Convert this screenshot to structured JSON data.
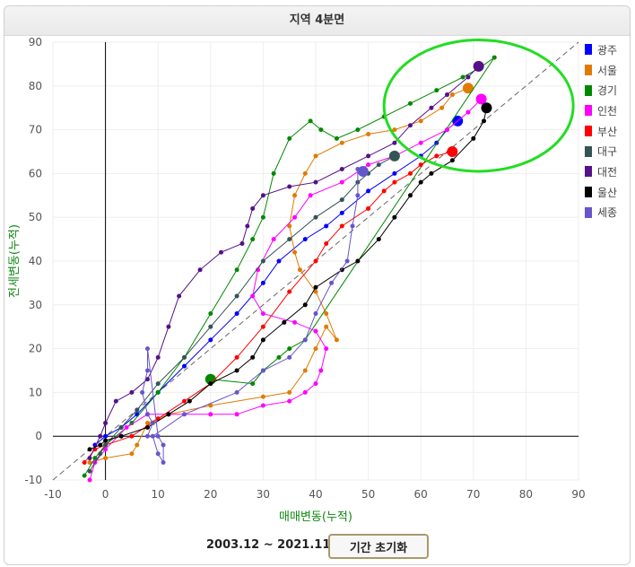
{
  "header": {
    "title": "지역 4분면"
  },
  "footer": {
    "period": "2003.12 ~ 2021.11",
    "reset_label": "기간 초기화"
  },
  "chart_data": {
    "type": "scatter",
    "title": "지역 4분면",
    "xlabel": "매매변동(누적)",
    "ylabel": "전세변동(누적)",
    "xlim": [
      -10,
      90
    ],
    "ylim": [
      -10,
      90
    ],
    "xticks": [
      -10,
      0,
      10,
      20,
      30,
      40,
      50,
      60,
      70,
      80,
      90
    ],
    "yticks": [
      -10,
      0,
      10,
      20,
      30,
      40,
      50,
      60,
      70,
      80,
      90
    ],
    "grid": true,
    "diagonal_reference": true,
    "legend_position": "right",
    "highlight_ellipse": {
      "cx": 71,
      "cy": 75.5,
      "rx": 18,
      "ry": 15,
      "color": "#22dd22"
    },
    "series": [
      {
        "name": "광주",
        "color": "#0000ff",
        "points": [
          [
            -2,
            -2
          ],
          [
            0,
            0
          ],
          [
            3,
            2
          ],
          [
            6,
            5
          ],
          [
            10,
            10
          ],
          [
            15,
            16
          ],
          [
            20,
            22
          ],
          [
            25,
            28
          ],
          [
            30,
            35
          ],
          [
            33,
            40
          ],
          [
            38,
            45
          ],
          [
            42,
            48
          ],
          [
            45,
            51
          ],
          [
            50,
            56
          ],
          [
            55,
            60
          ],
          [
            60,
            64
          ],
          [
            63,
            67
          ],
          [
            65,
            70
          ],
          [
            67,
            72
          ]
        ]
      },
      {
        "name": "서울",
        "color": "#e07b00",
        "points": [
          [
            -3,
            -6
          ],
          [
            0,
            -5
          ],
          [
            5,
            -4
          ],
          [
            6,
            -2
          ],
          [
            8,
            3
          ],
          [
            12,
            5
          ],
          [
            20,
            7
          ],
          [
            30,
            9
          ],
          [
            35,
            10
          ],
          [
            38,
            15
          ],
          [
            40,
            20
          ],
          [
            42,
            25
          ],
          [
            44,
            22
          ],
          [
            42,
            28
          ],
          [
            40,
            33
          ],
          [
            37,
            38
          ],
          [
            36,
            42
          ],
          [
            35,
            48
          ],
          [
            36,
            55
          ],
          [
            38,
            60
          ],
          [
            40,
            64
          ],
          [
            45,
            67
          ],
          [
            50,
            69
          ],
          [
            55,
            70
          ],
          [
            60,
            72
          ],
          [
            64,
            75
          ],
          [
            66,
            78
          ],
          [
            69,
            79.5
          ]
        ]
      },
      {
        "name": "경기",
        "color": "#008800",
        "points": [
          [
            -4,
            -9
          ],
          [
            -2,
            -5
          ],
          [
            0,
            -2
          ],
          [
            5,
            3
          ],
          [
            10,
            10
          ],
          [
            15,
            18
          ],
          [
            20,
            28
          ],
          [
            25,
            38
          ],
          [
            28,
            45
          ],
          [
            30,
            50
          ],
          [
            32,
            60
          ],
          [
            35,
            68
          ],
          [
            39,
            72
          ],
          [
            41,
            70
          ],
          [
            44,
            68
          ],
          [
            48,
            70
          ],
          [
            53,
            73
          ],
          [
            58,
            76
          ],
          [
            63,
            79
          ],
          [
            68,
            82
          ],
          [
            71,
            84
          ],
          [
            74,
            86.5
          ],
          [
            38,
            22
          ],
          [
            35,
            20
          ],
          [
            33,
            18
          ],
          [
            30,
            15
          ],
          [
            28,
            12
          ],
          [
            20,
            13
          ]
        ]
      },
      {
        "name": "인천",
        "color": "#ff00ff",
        "points": [
          [
            -3,
            -10
          ],
          [
            -2,
            -6
          ],
          [
            0,
            -3
          ],
          [
            4,
            2
          ],
          [
            8,
            5
          ],
          [
            12,
            5
          ],
          [
            20,
            5
          ],
          [
            25,
            5
          ],
          [
            30,
            7
          ],
          [
            35,
            8
          ],
          [
            38,
            10
          ],
          [
            40,
            12
          ],
          [
            41,
            15
          ],
          [
            42,
            20
          ],
          [
            40,
            24
          ],
          [
            36,
            26
          ],
          [
            30,
            28
          ],
          [
            28,
            32
          ],
          [
            29,
            38
          ],
          [
            32,
            45
          ],
          [
            36,
            50
          ],
          [
            39,
            55
          ],
          [
            45,
            58
          ],
          [
            50,
            62
          ],
          [
            55,
            64
          ],
          [
            60,
            67
          ],
          [
            65,
            70
          ],
          [
            69,
            74
          ],
          [
            71.5,
            77
          ]
        ]
      },
      {
        "name": "부산",
        "color": "#ff0000",
        "points": [
          [
            -4,
            -6
          ],
          [
            -2,
            -3
          ],
          [
            0,
            -2
          ],
          [
            5,
            0
          ],
          [
            10,
            4
          ],
          [
            15,
            8
          ],
          [
            20,
            12
          ],
          [
            25,
            18
          ],
          [
            30,
            25
          ],
          [
            35,
            33
          ],
          [
            40,
            40
          ],
          [
            42,
            44
          ],
          [
            45,
            48
          ],
          [
            50,
            52
          ],
          [
            53,
            56
          ],
          [
            55,
            58
          ],
          [
            58,
            60
          ],
          [
            60,
            62
          ],
          [
            63,
            64
          ],
          [
            66,
            65
          ]
        ]
      },
      {
        "name": "대구",
        "color": "#335555",
        "points": [
          [
            -3,
            -8
          ],
          [
            -1,
            -4
          ],
          [
            0,
            -2
          ],
          [
            3,
            2
          ],
          [
            6,
            6
          ],
          [
            10,
            12
          ],
          [
            15,
            18
          ],
          [
            20,
            25
          ],
          [
            25,
            32
          ],
          [
            30,
            40
          ],
          [
            35,
            45
          ],
          [
            40,
            50
          ],
          [
            45,
            54
          ],
          [
            48,
            58
          ],
          [
            50,
            60
          ],
          [
            52,
            62
          ],
          [
            55,
            64
          ]
        ]
      },
      {
        "name": "대전",
        "color": "#551188",
        "points": [
          [
            -3,
            -5
          ],
          [
            -1,
            0
          ],
          [
            0,
            3
          ],
          [
            2,
            8
          ],
          [
            5,
            10
          ],
          [
            8,
            13
          ],
          [
            10,
            18
          ],
          [
            12,
            25
          ],
          [
            14,
            32
          ],
          [
            18,
            38
          ],
          [
            22,
            42
          ],
          [
            26,
            44
          ],
          [
            27,
            48
          ],
          [
            28,
            52
          ],
          [
            30,
            55
          ],
          [
            35,
            57
          ],
          [
            40,
            58
          ],
          [
            45,
            61
          ],
          [
            50,
            64
          ],
          [
            55,
            67
          ],
          [
            58,
            71
          ],
          [
            62,
            75
          ],
          [
            65,
            78
          ],
          [
            69,
            82
          ],
          [
            71,
            84.5
          ]
        ]
      },
      {
        "name": "울산",
        "color": "#000000",
        "points": [
          [
            -3,
            -3
          ],
          [
            -1,
            -2
          ],
          [
            0,
            -1
          ],
          [
            3,
            0
          ],
          [
            8,
            2
          ],
          [
            12,
            5
          ],
          [
            16,
            8
          ],
          [
            20,
            12
          ],
          [
            25,
            15
          ],
          [
            28,
            18
          ],
          [
            30,
            22
          ],
          [
            34,
            26
          ],
          [
            38,
            30
          ],
          [
            40,
            34
          ],
          [
            45,
            38
          ],
          [
            48,
            40
          ],
          [
            52,
            45
          ],
          [
            55,
            50
          ],
          [
            58,
            55
          ],
          [
            60,
            58
          ],
          [
            62,
            60
          ],
          [
            66,
            63
          ],
          [
            70,
            68
          ],
          [
            72,
            72
          ],
          [
            72.5,
            75
          ]
        ]
      },
      {
        "name": "세종",
        "color": "#6655cc",
        "points": [
          [
            8,
            0
          ],
          [
            9,
            3
          ],
          [
            8,
            5
          ],
          [
            7,
            10
          ],
          [
            8,
            15
          ],
          [
            8,
            20
          ],
          [
            10,
            0
          ],
          [
            11,
            -2
          ],
          [
            11,
            -6
          ],
          [
            10,
            -4
          ],
          [
            9,
            0
          ],
          [
            15,
            5
          ],
          [
            25,
            10
          ],
          [
            30,
            15
          ],
          [
            35,
            18
          ],
          [
            38,
            22
          ],
          [
            40,
            28
          ],
          [
            43,
            35
          ],
          [
            46,
            40
          ],
          [
            47,
            48
          ],
          [
            48,
            55
          ],
          [
            48,
            61
          ],
          [
            49,
            60.5
          ]
        ]
      }
    ]
  }
}
